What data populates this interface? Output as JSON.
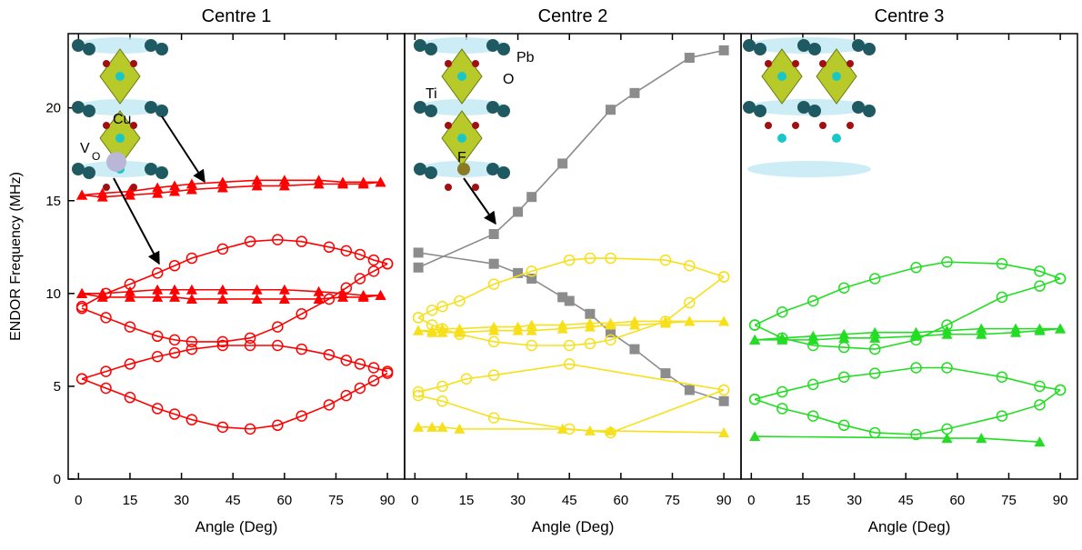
{
  "chart_data": [
    {
      "type": "line",
      "title": "Centre 1",
      "xlabel": "Angle (Deg)",
      "ylabel": "ENDOR Frequency (MHz)",
      "xlim": [
        -3,
        95
      ],
      "xticks": [
        0,
        15,
        30,
        45,
        60,
        75,
        90
      ],
      "ylim": [
        0,
        24
      ],
      "yticks": [
        0,
        5,
        10,
        15,
        20
      ],
      "annotations": [
        "Cu",
        "V",
        "O"
      ],
      "series": [
        {
          "color": "#ff0000",
          "marker": "triangle",
          "x": [
            1,
            7,
            15,
            23,
            28,
            33,
            42,
            52,
            60,
            70,
            77,
            83,
            88
          ],
          "values": [
            15.3,
            15.4,
            15.5,
            15.7,
            15.8,
            15.9,
            16.0,
            16.1,
            16.1,
            16.1,
            16.0,
            16.0,
            16.0
          ]
        },
        {
          "color": "#ff0000",
          "marker": "triangle",
          "x": [
            1,
            7,
            15,
            23,
            28,
            33,
            42,
            52,
            60,
            70,
            77,
            83,
            88
          ],
          "values": [
            15.3,
            15.2,
            15.3,
            15.4,
            15.5,
            15.6,
            15.7,
            15.8,
            15.8,
            15.9,
            15.9,
            15.9,
            16.0
          ]
        },
        {
          "color": "#ff0000",
          "marker": "triangle",
          "x": [
            1,
            7,
            15,
            23,
            28,
            33,
            42,
            52,
            60,
            70,
            77,
            83,
            88
          ],
          "values": [
            10.0,
            10.0,
            10.1,
            10.2,
            10.2,
            10.2,
            10.2,
            10.2,
            10.2,
            10.1,
            10.0,
            9.9,
            9.9
          ]
        },
        {
          "color": "#ff0000",
          "marker": "triangle",
          "x": [
            1,
            7,
            15,
            23,
            28,
            33,
            42,
            52,
            60,
            70,
            77,
            83,
            88
          ],
          "values": [
            10.0,
            9.8,
            9.8,
            9.8,
            9.8,
            9.7,
            9.7,
            9.7,
            9.7,
            9.7,
            9.8,
            9.8,
            9.9
          ]
        },
        {
          "color": "#ff0000",
          "marker": "circle",
          "x": [
            1,
            8,
            15,
            23,
            28,
            33,
            42,
            50,
            58,
            65,
            73,
            78,
            82,
            86,
            90
          ],
          "values": [
            9.3,
            10.0,
            10.5,
            11.1,
            11.5,
            11.9,
            12.4,
            12.8,
            12.9,
            12.8,
            12.5,
            12.3,
            12.1,
            11.8,
            11.6
          ]
        },
        {
          "color": "#ff0000",
          "marker": "circle",
          "x": [
            1,
            8,
            15,
            23,
            28,
            33,
            42,
            50,
            58,
            65,
            73,
            78,
            82,
            86,
            90
          ],
          "values": [
            9.2,
            8.7,
            8.2,
            7.7,
            7.5,
            7.4,
            7.4,
            7.6,
            8.2,
            8.9,
            9.7,
            10.3,
            10.8,
            11.2,
            11.6
          ]
        },
        {
          "color": "#ff0000",
          "marker": "circle",
          "x": [
            1,
            8,
            15,
            23,
            28,
            33,
            42,
            50,
            58,
            65,
            73,
            78,
            82,
            86,
            90
          ],
          "values": [
            5.4,
            5.8,
            6.2,
            6.6,
            6.8,
            7.0,
            7.2,
            7.2,
            7.2,
            7.0,
            6.7,
            6.4,
            6.2,
            6.0,
            5.8
          ]
        },
        {
          "color": "#ff0000",
          "marker": "circle",
          "x": [
            1,
            8,
            15,
            23,
            28,
            33,
            42,
            50,
            58,
            65,
            73,
            78,
            82,
            86,
            90
          ],
          "values": [
            5.4,
            4.9,
            4.4,
            3.8,
            3.5,
            3.2,
            2.8,
            2.7,
            2.9,
            3.4,
            4.0,
            4.5,
            4.9,
            5.3,
            5.7
          ]
        }
      ]
    },
    {
      "type": "line",
      "title": "Centre 2",
      "xlabel": "Angle (Deg)",
      "xlim": [
        -3,
        95
      ],
      "xticks": [
        0,
        15,
        30,
        45,
        60,
        75,
        90
      ],
      "ylim": [
        0,
        24
      ],
      "annotations": [
        "Pb",
        "O",
        "Ti",
        "F"
      ],
      "series": [
        {
          "color": "#8c8c8c",
          "marker": "square",
          "x": [
            1,
            23,
            30,
            34,
            43,
            57,
            64,
            80,
            90
          ],
          "values": [
            11.4,
            13.2,
            14.4,
            15.2,
            17.0,
            19.9,
            20.8,
            22.7,
            23.1
          ]
        },
        {
          "color": "#8c8c8c",
          "marker": "square",
          "x": [
            1,
            23,
            30,
            34,
            43,
            45,
            51,
            57,
            64,
            73,
            80,
            90
          ],
          "values": [
            12.2,
            11.6,
            11.1,
            10.8,
            9.8,
            9.6,
            8.9,
            7.9,
            7.0,
            5.7,
            4.8,
            4.2
          ]
        },
        {
          "color": "#f7e01a",
          "marker": "circle",
          "x": [
            1,
            5,
            8,
            13,
            23,
            34,
            45,
            51,
            57,
            73,
            80,
            90
          ],
          "values": [
            8.7,
            9.1,
            9.3,
            9.6,
            10.5,
            11.2,
            11.8,
            11.9,
            11.9,
            11.8,
            11.5,
            10.9
          ]
        },
        {
          "color": "#f7e01a",
          "marker": "circle",
          "x": [
            1,
            5,
            8,
            13,
            23,
            34,
            45,
            51,
            57,
            73,
            80,
            90
          ],
          "values": [
            8.7,
            8.3,
            8.1,
            7.8,
            7.4,
            7.2,
            7.2,
            7.3,
            7.5,
            8.5,
            9.5,
            10.9
          ]
        },
        {
          "color": "#f7e01a",
          "marker": "triangle",
          "x": [
            1,
            5,
            8,
            13,
            23,
            30,
            34,
            43,
            51,
            57,
            64,
            73,
            80,
            90
          ],
          "values": [
            8.0,
            8.0,
            8.1,
            8.1,
            8.2,
            8.2,
            8.3,
            8.3,
            8.4,
            8.4,
            8.5,
            8.5,
            8.5,
            8.5
          ]
        },
        {
          "color": "#f7e01a",
          "marker": "triangle",
          "x": [
            1,
            5,
            8,
            13,
            23,
            30,
            34,
            43,
            51,
            57,
            64,
            73,
            80,
            90
          ],
          "values": [
            8.0,
            7.9,
            7.9,
            7.9,
            8.0,
            8.0,
            8.0,
            8.1,
            8.2,
            8.3,
            8.3,
            8.4,
            8.5,
            8.5
          ]
        },
        {
          "color": "#f7e01a",
          "marker": "circle",
          "x": [
            1,
            8,
            15,
            23,
            45,
            90
          ],
          "values": [
            4.7,
            5.0,
            5.4,
            5.6,
            6.2,
            4.8
          ]
        },
        {
          "color": "#f7e01a",
          "marker": "circle",
          "x": [
            1,
            8,
            23,
            45,
            57,
            90
          ],
          "values": [
            4.5,
            4.2,
            3.3,
            2.7,
            2.5,
            4.8
          ]
        },
        {
          "color": "#f7e01a",
          "marker": "triangle",
          "x": [
            1,
            5,
            8,
            13,
            43,
            51,
            57,
            90
          ],
          "values": [
            2.8,
            2.8,
            2.8,
            2.7,
            2.7,
            2.6,
            2.6,
            2.5
          ]
        }
      ]
    },
    {
      "type": "line",
      "title": "Centre 3",
      "xlabel": "Angle (Deg)",
      "xlim": [
        -3,
        95
      ],
      "xticks": [
        0,
        15,
        30,
        45,
        60,
        75,
        90
      ],
      "ylim": [
        0,
        24
      ],
      "series": [
        {
          "color": "#22dd22",
          "marker": "circle",
          "x": [
            1,
            9,
            18,
            27,
            36,
            48,
            57,
            73,
            84,
            90
          ],
          "values": [
            8.3,
            9.0,
            9.6,
            10.3,
            10.8,
            11.4,
            11.7,
            11.6,
            11.2,
            10.8
          ]
        },
        {
          "color": "#22dd22",
          "marker": "circle",
          "x": [
            1,
            9,
            18,
            27,
            36,
            48,
            57,
            73,
            84,
            90
          ],
          "values": [
            8.3,
            7.6,
            7.2,
            7.1,
            7.0,
            7.5,
            8.3,
            9.8,
            10.4,
            10.8
          ]
        },
        {
          "color": "#22dd22",
          "marker": "triangle",
          "x": [
            1,
            9,
            18,
            27,
            36,
            48,
            57,
            67,
            77,
            84,
            90
          ],
          "values": [
            7.5,
            7.6,
            7.7,
            7.8,
            7.9,
            7.9,
            8.0,
            8.1,
            8.1,
            8.1,
            8.1
          ]
        },
        {
          "color": "#22dd22",
          "marker": "triangle",
          "x": [
            1,
            9,
            18,
            27,
            36,
            48,
            57,
            67,
            77,
            84,
            90
          ],
          "values": [
            7.5,
            7.5,
            7.5,
            7.6,
            7.6,
            7.7,
            7.8,
            7.8,
            7.9,
            8.0,
            8.1
          ]
        },
        {
          "color": "#22dd22",
          "marker": "circle",
          "x": [
            1,
            9,
            18,
            27,
            36,
            48,
            57,
            73,
            84,
            90
          ],
          "values": [
            4.3,
            4.7,
            5.1,
            5.5,
            5.7,
            6.0,
            6.0,
            5.5,
            5.0,
            4.8
          ]
        },
        {
          "color": "#22dd22",
          "marker": "circle",
          "x": [
            1,
            9,
            18,
            27,
            36,
            48,
            57,
            73,
            84,
            90
          ],
          "values": [
            4.3,
            3.8,
            3.4,
            2.9,
            2.5,
            2.4,
            2.7,
            3.4,
            4.0,
            4.8
          ]
        },
        {
          "color": "#22dd22",
          "marker": "triangle",
          "x": [
            1,
            57,
            67,
            84
          ],
          "values": [
            2.3,
            2.2,
            2.2,
            2.0
          ]
        }
      ]
    }
  ]
}
